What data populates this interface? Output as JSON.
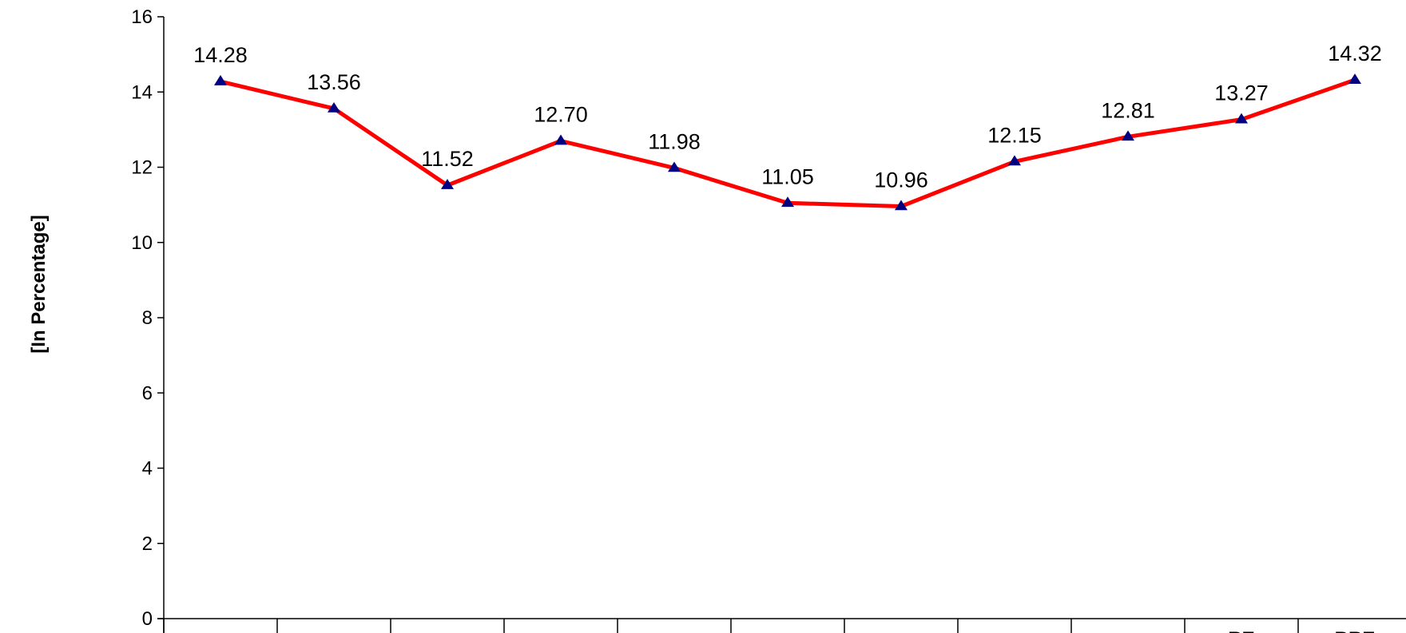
{
  "chart_data": {
    "type": "line",
    "categories": [
      "",
      "",
      "",
      "",
      "",
      "",
      "",
      "",
      "",
      "RE",
      "BRE"
    ],
    "series": [
      {
        "values": [
          14.28,
          13.56,
          11.52,
          12.7,
          11.98,
          11.05,
          10.96,
          12.15,
          12.81,
          13.27,
          14.32
        ],
        "data_labels": [
          "14.28",
          "13.56",
          "11.52",
          "12.70",
          "11.98",
          "11.05",
          "10.96",
          "12.15",
          "12.81",
          "13.27",
          "14.32"
        ]
      }
    ],
    "ylabel": "[In Percentage]",
    "xlabel": "",
    "ylim": [
      0,
      16
    ],
    "yticks": [
      0,
      2,
      4,
      6,
      8,
      10,
      12,
      14,
      16
    ],
    "grid": false,
    "colors": {
      "line": "#ff0000",
      "marker": "#000080",
      "axis": "#000000"
    }
  }
}
